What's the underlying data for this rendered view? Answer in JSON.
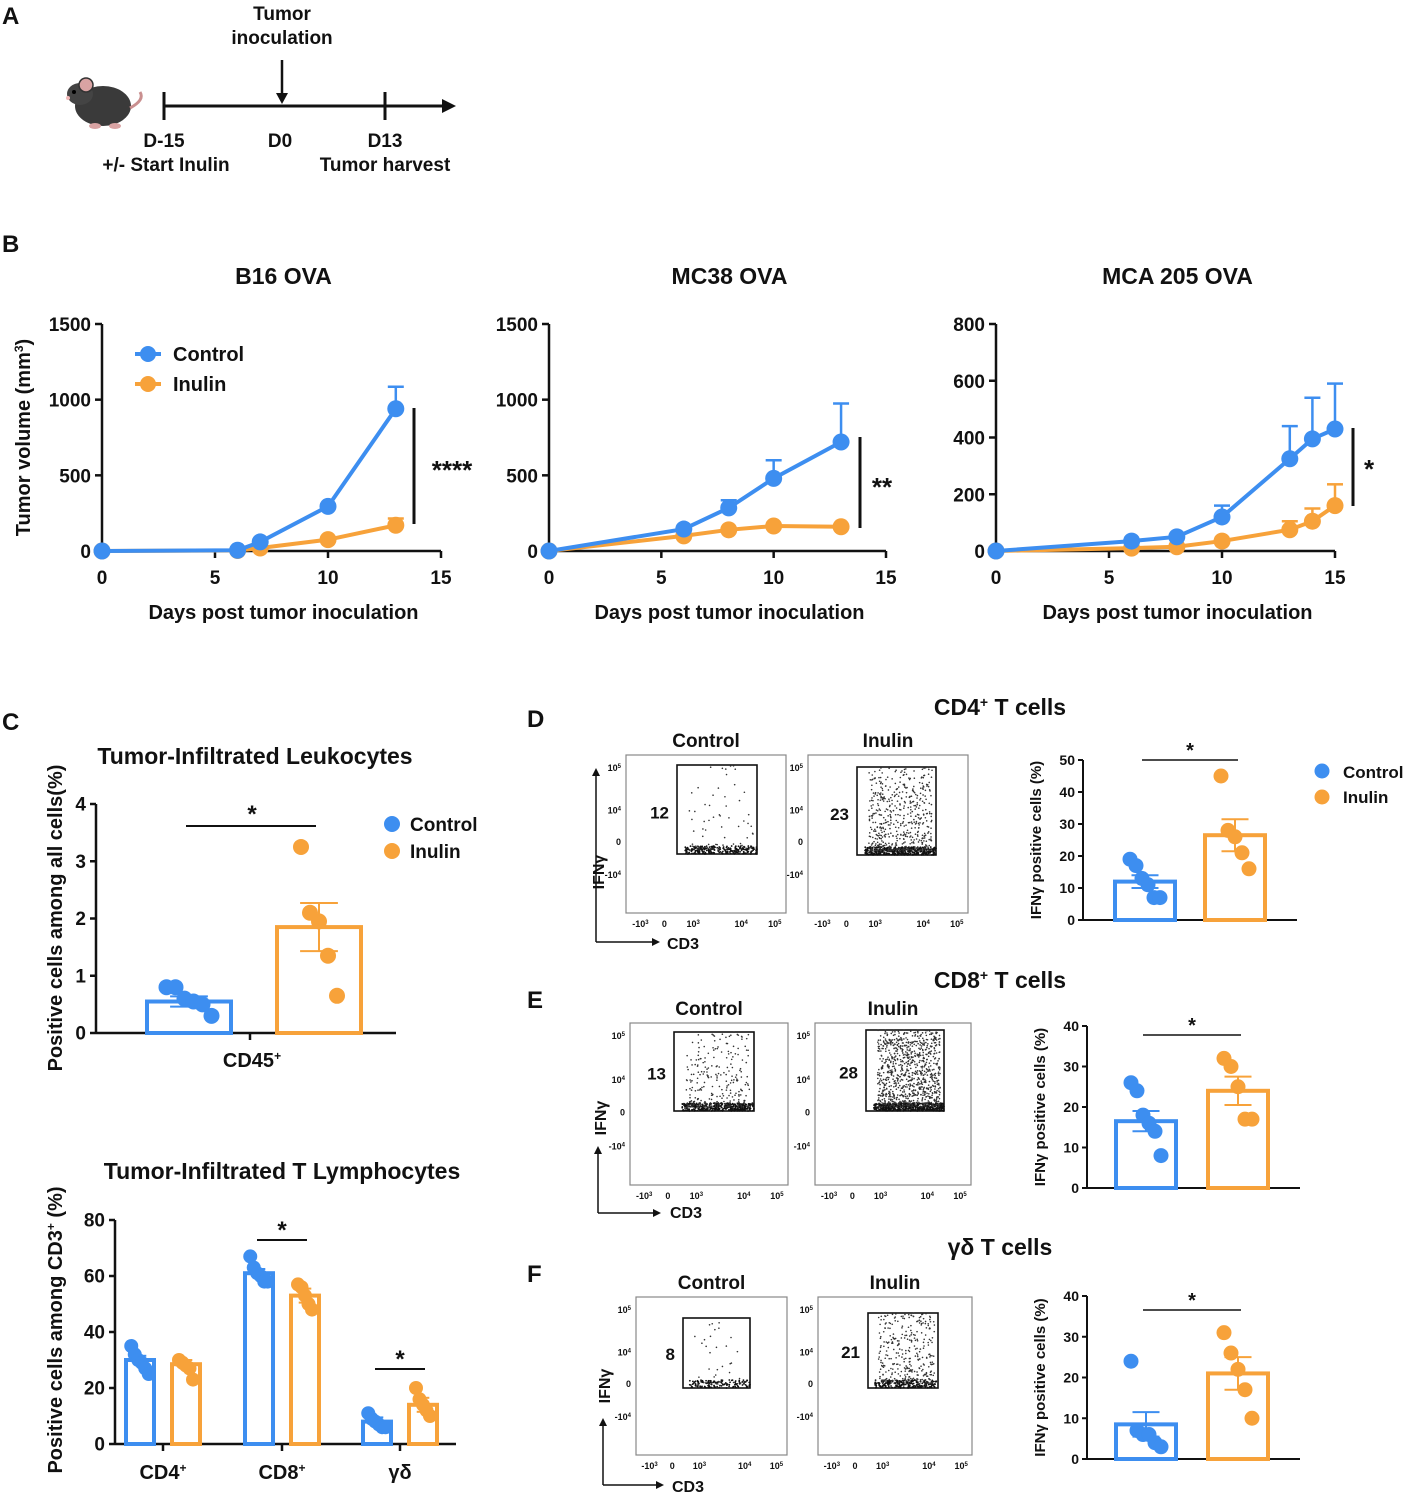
{
  "colors": {
    "control": "#3d8ef0",
    "inulin": "#f7a23a",
    "axis": "#111111"
  },
  "panel_labels": {
    "A": "A",
    "B": "B",
    "C": "C",
    "D": "D",
    "E": "E",
    "F": "F"
  },
  "timeline": {
    "icon": "mouse-icon",
    "arrow_label_1": "Tumor",
    "arrow_label_2": "inoculation",
    "points": [
      {
        "day": "D-15",
        "note": "+/- Start Inulin"
      },
      {
        "day": "D0",
        "note": ""
      },
      {
        "day": "D13",
        "note": "Tumor harvest"
      }
    ]
  },
  "legend": {
    "control": "Control",
    "inulin": "Inulin"
  },
  "flow": {
    "control": "Control",
    "inulin": "Inulin",
    "x_axis": "CD3",
    "y_axis": "IFNγ",
    "ytick_labels": [
      "10",
      "10",
      "0",
      "-10"
    ],
    "ytick_exps": [
      "5",
      "4",
      "",
      "4"
    ],
    "xtick_labels": [
      "-10",
      "0",
      "10",
      "10",
      "10"
    ],
    "xtick_exps": [
      "3",
      "",
      "3",
      "4",
      "5"
    ]
  },
  "chart_data": [
    {
      "id": "B1",
      "type": "line",
      "title": "B16 OVA",
      "xlabel": "Days post tumor inoculation",
      "ylabel": "Tumor volume (mm",
      "ylabel_sup": "3",
      "ylabel_end": ")",
      "xlim": [
        0,
        15
      ],
      "xticks": [
        0,
        5,
        10,
        15
      ],
      "ylim": [
        0,
        1500
      ],
      "yticks": [
        0,
        500,
        1000,
        1500
      ],
      "series": [
        {
          "name": "Control",
          "x": [
            0,
            6,
            7,
            10,
            13
          ],
          "y": [
            0,
            5,
            60,
            295,
            940
          ],
          "err": [
            0,
            0,
            0,
            0,
            145
          ]
        },
        {
          "name": "Inulin",
          "x": [
            0,
            6,
            7,
            10,
            13
          ],
          "y": [
            0,
            3,
            20,
            75,
            170
          ],
          "err": [
            0,
            0,
            0,
            0,
            45
          ]
        }
      ],
      "significance": "****"
    },
    {
      "id": "B2",
      "type": "line",
      "title": "MC38 OVA",
      "xlabel": "Days post tumor inoculation",
      "xlim": [
        0,
        15
      ],
      "xticks": [
        0,
        5,
        10,
        15
      ],
      "ylim": [
        0,
        1500
      ],
      "yticks": [
        0,
        500,
        1000,
        1500
      ],
      "series": [
        {
          "name": "Control",
          "x": [
            0,
            6,
            8,
            10,
            13
          ],
          "y": [
            0,
            145,
            285,
            480,
            720
          ],
          "err": [
            0,
            0,
            50,
            120,
            255
          ]
        },
        {
          "name": "Inulin",
          "x": [
            0,
            6,
            8,
            10,
            13
          ],
          "y": [
            0,
            100,
            140,
            165,
            160
          ],
          "err": [
            0,
            0,
            0,
            0,
            0
          ]
        }
      ],
      "significance": "**"
    },
    {
      "id": "B3",
      "type": "line",
      "title": "MCA 205 OVA",
      "xlabel": "Days post tumor inoculation",
      "xlim": [
        0,
        15
      ],
      "xticks": [
        0,
        5,
        10,
        15
      ],
      "ylim": [
        0,
        800
      ],
      "yticks": [
        0,
        200,
        400,
        600,
        800
      ],
      "series": [
        {
          "name": "Control",
          "x": [
            0,
            6,
            8,
            10,
            13,
            14,
            15
          ],
          "y": [
            0,
            35,
            50,
            120,
            325,
            395,
            430
          ],
          "err": [
            0,
            0,
            0,
            40,
            115,
            145,
            160
          ]
        },
        {
          "name": "Inulin",
          "x": [
            0,
            6,
            8,
            10,
            13,
            14,
            15
          ],
          "y": [
            0,
            10,
            15,
            35,
            75,
            105,
            160
          ],
          "err": [
            0,
            0,
            0,
            0,
            30,
            45,
            75
          ]
        }
      ],
      "significance": "*"
    },
    {
      "id": "C1",
      "type": "bar",
      "title": "Tumor-Infiltrated Leukocytes",
      "ylabel": "Positive cells among all cells(%)",
      "category": "CD45",
      "category_sup": "+",
      "ylim": [
        0,
        4
      ],
      "yticks": [
        0,
        1,
        2,
        3,
        4
      ],
      "series": [
        {
          "name": "Control",
          "mean": 0.55,
          "err": 0.09,
          "points": [
            0.8,
            0.8,
            0.6,
            0.55,
            0.5,
            0.3
          ]
        },
        {
          "name": "Inulin",
          "mean": 1.85,
          "err": 0.42,
          "points": [
            3.25,
            2.1,
            1.95,
            1.35,
            0.65
          ]
        }
      ],
      "significance": "*"
    },
    {
      "id": "C2",
      "type": "bar",
      "title": "Tumor-Infiltrated T Lymphocytes",
      "ylabel": "Positive cells among CD3",
      "ylabel_sup": "+",
      "ylabel_end": " (%)",
      "ylim": [
        0,
        80
      ],
      "yticks": [
        0,
        20,
        40,
        60,
        80
      ],
      "categories": [
        "CD4",
        "CD8",
        "γδ"
      ],
      "category_sups": [
        "+",
        "+",
        ""
      ],
      "series": [
        {
          "name": "Control",
          "means": [
            30,
            61,
            8
          ],
          "errs": [
            1.5,
            1.5,
            1.5
          ],
          "points": [
            [
              35,
              32,
              30,
              29,
              27,
              25
            ],
            [
              67,
              63,
              61,
              60,
              58,
              58
            ],
            [
              11,
              9,
              8,
              7,
              6,
              6
            ]
          ]
        },
        {
          "name": "Inulin",
          "means": [
            28.5,
            53,
            14
          ],
          "errs": [
            1.5,
            2.5,
            2.5
          ],
          "points": [
            [
              30,
              29,
              28,
              27,
              23
            ],
            [
              57,
              56,
              53,
              50,
              48
            ],
            [
              20,
              16,
              14,
              12,
              10
            ]
          ]
        }
      ],
      "significance": [
        "",
        "*",
        "*"
      ]
    },
    {
      "id": "D",
      "type": "scatter",
      "title": "CD4",
      "title_sup": "+",
      "title_end": " T cells",
      "gate_values": [
        12,
        23
      ],
      "bar": {
        "ylabel": "IFNγ positive cells (%)",
        "ylim": [
          0,
          50
        ],
        "yticks": [
          0,
          10,
          20,
          30,
          40,
          50
        ],
        "series": [
          {
            "name": "Control",
            "mean": 12,
            "err": 2,
            "points": [
              19,
              17,
              13,
              11,
              7,
              7
            ]
          },
          {
            "name": "Inulin",
            "mean": 26.5,
            "err": 5,
            "points": [
              45,
              28,
              26,
              21,
              16
            ]
          }
        ],
        "significance": "*"
      }
    },
    {
      "id": "E",
      "type": "scatter",
      "title": "CD8",
      "title_sup": "+",
      "title_end": " T cells",
      "gate_values": [
        13,
        28
      ],
      "bar": {
        "ylabel": "IFNγ positive cells (%)",
        "ylim": [
          0,
          40
        ],
        "yticks": [
          0,
          10,
          20,
          30,
          40
        ],
        "series": [
          {
            "name": "Control",
            "mean": 16.5,
            "err": 2.5,
            "points": [
              26,
              24,
              18,
              16,
              14,
              8
            ]
          },
          {
            "name": "Inulin",
            "mean": 24,
            "err": 3.5,
            "points": [
              32,
              30,
              25,
              17,
              17
            ]
          }
        ],
        "significance": "*"
      }
    },
    {
      "id": "F",
      "type": "scatter",
      "title": "γδ T cells",
      "gate_values": [
        8,
        21
      ],
      "bar": {
        "ylabel": "IFNγ positive cells (%)",
        "ylim": [
          0,
          40
        ],
        "yticks": [
          0,
          10,
          20,
          30,
          40
        ],
        "series": [
          {
            "name": "Control",
            "mean": 8.5,
            "err": 3,
            "points": [
              24,
              7,
              6,
              6,
              4,
              3
            ]
          },
          {
            "name": "Inulin",
            "mean": 21,
            "err": 4,
            "points": [
              31,
              26,
              22,
              17,
              10
            ]
          }
        ],
        "significance": "*"
      }
    }
  ]
}
